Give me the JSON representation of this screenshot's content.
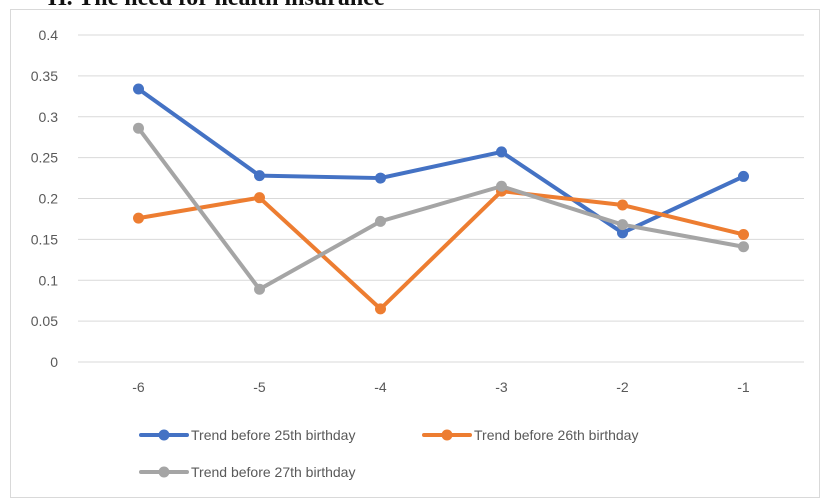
{
  "heading_fragment": "H.  The need for health insurance",
  "colors": {
    "series_1": "#4472c4",
    "series_2": "#ed7d31",
    "series_3": "#a5a5a5",
    "gridline": "#d9d9d9",
    "tick_text": "#595959"
  },
  "chart_data": {
    "type": "line",
    "x": [
      "-6",
      "-5",
      "-4",
      "-3",
      "-2",
      "-1"
    ],
    "ylim": [
      0,
      0.4
    ],
    "y_ticks": [
      "0",
      "0.05",
      "0.1",
      "0.15",
      "0.2",
      "0.25",
      "0.3",
      "0.35",
      "0.4"
    ],
    "y_tick_values": [
      0,
      0.05,
      0.1,
      0.15,
      0.2,
      0.25,
      0.3,
      0.35,
      0.4
    ],
    "grid": true,
    "legend_position": "bottom",
    "title": "",
    "xlabel": "",
    "ylabel": "",
    "series": [
      {
        "name": "Trend before 25th birthday",
        "values": [
          0.334,
          0.228,
          0.225,
          0.257,
          0.158,
          0.227
        ]
      },
      {
        "name": "Trend before 26th birthday",
        "values": [
          0.176,
          0.201,
          0.065,
          0.209,
          0.192,
          0.156
        ]
      },
      {
        "name": "Trend before 27th birthday",
        "values": [
          0.286,
          0.089,
          0.172,
          0.215,
          0.168,
          0.141
        ]
      }
    ]
  }
}
